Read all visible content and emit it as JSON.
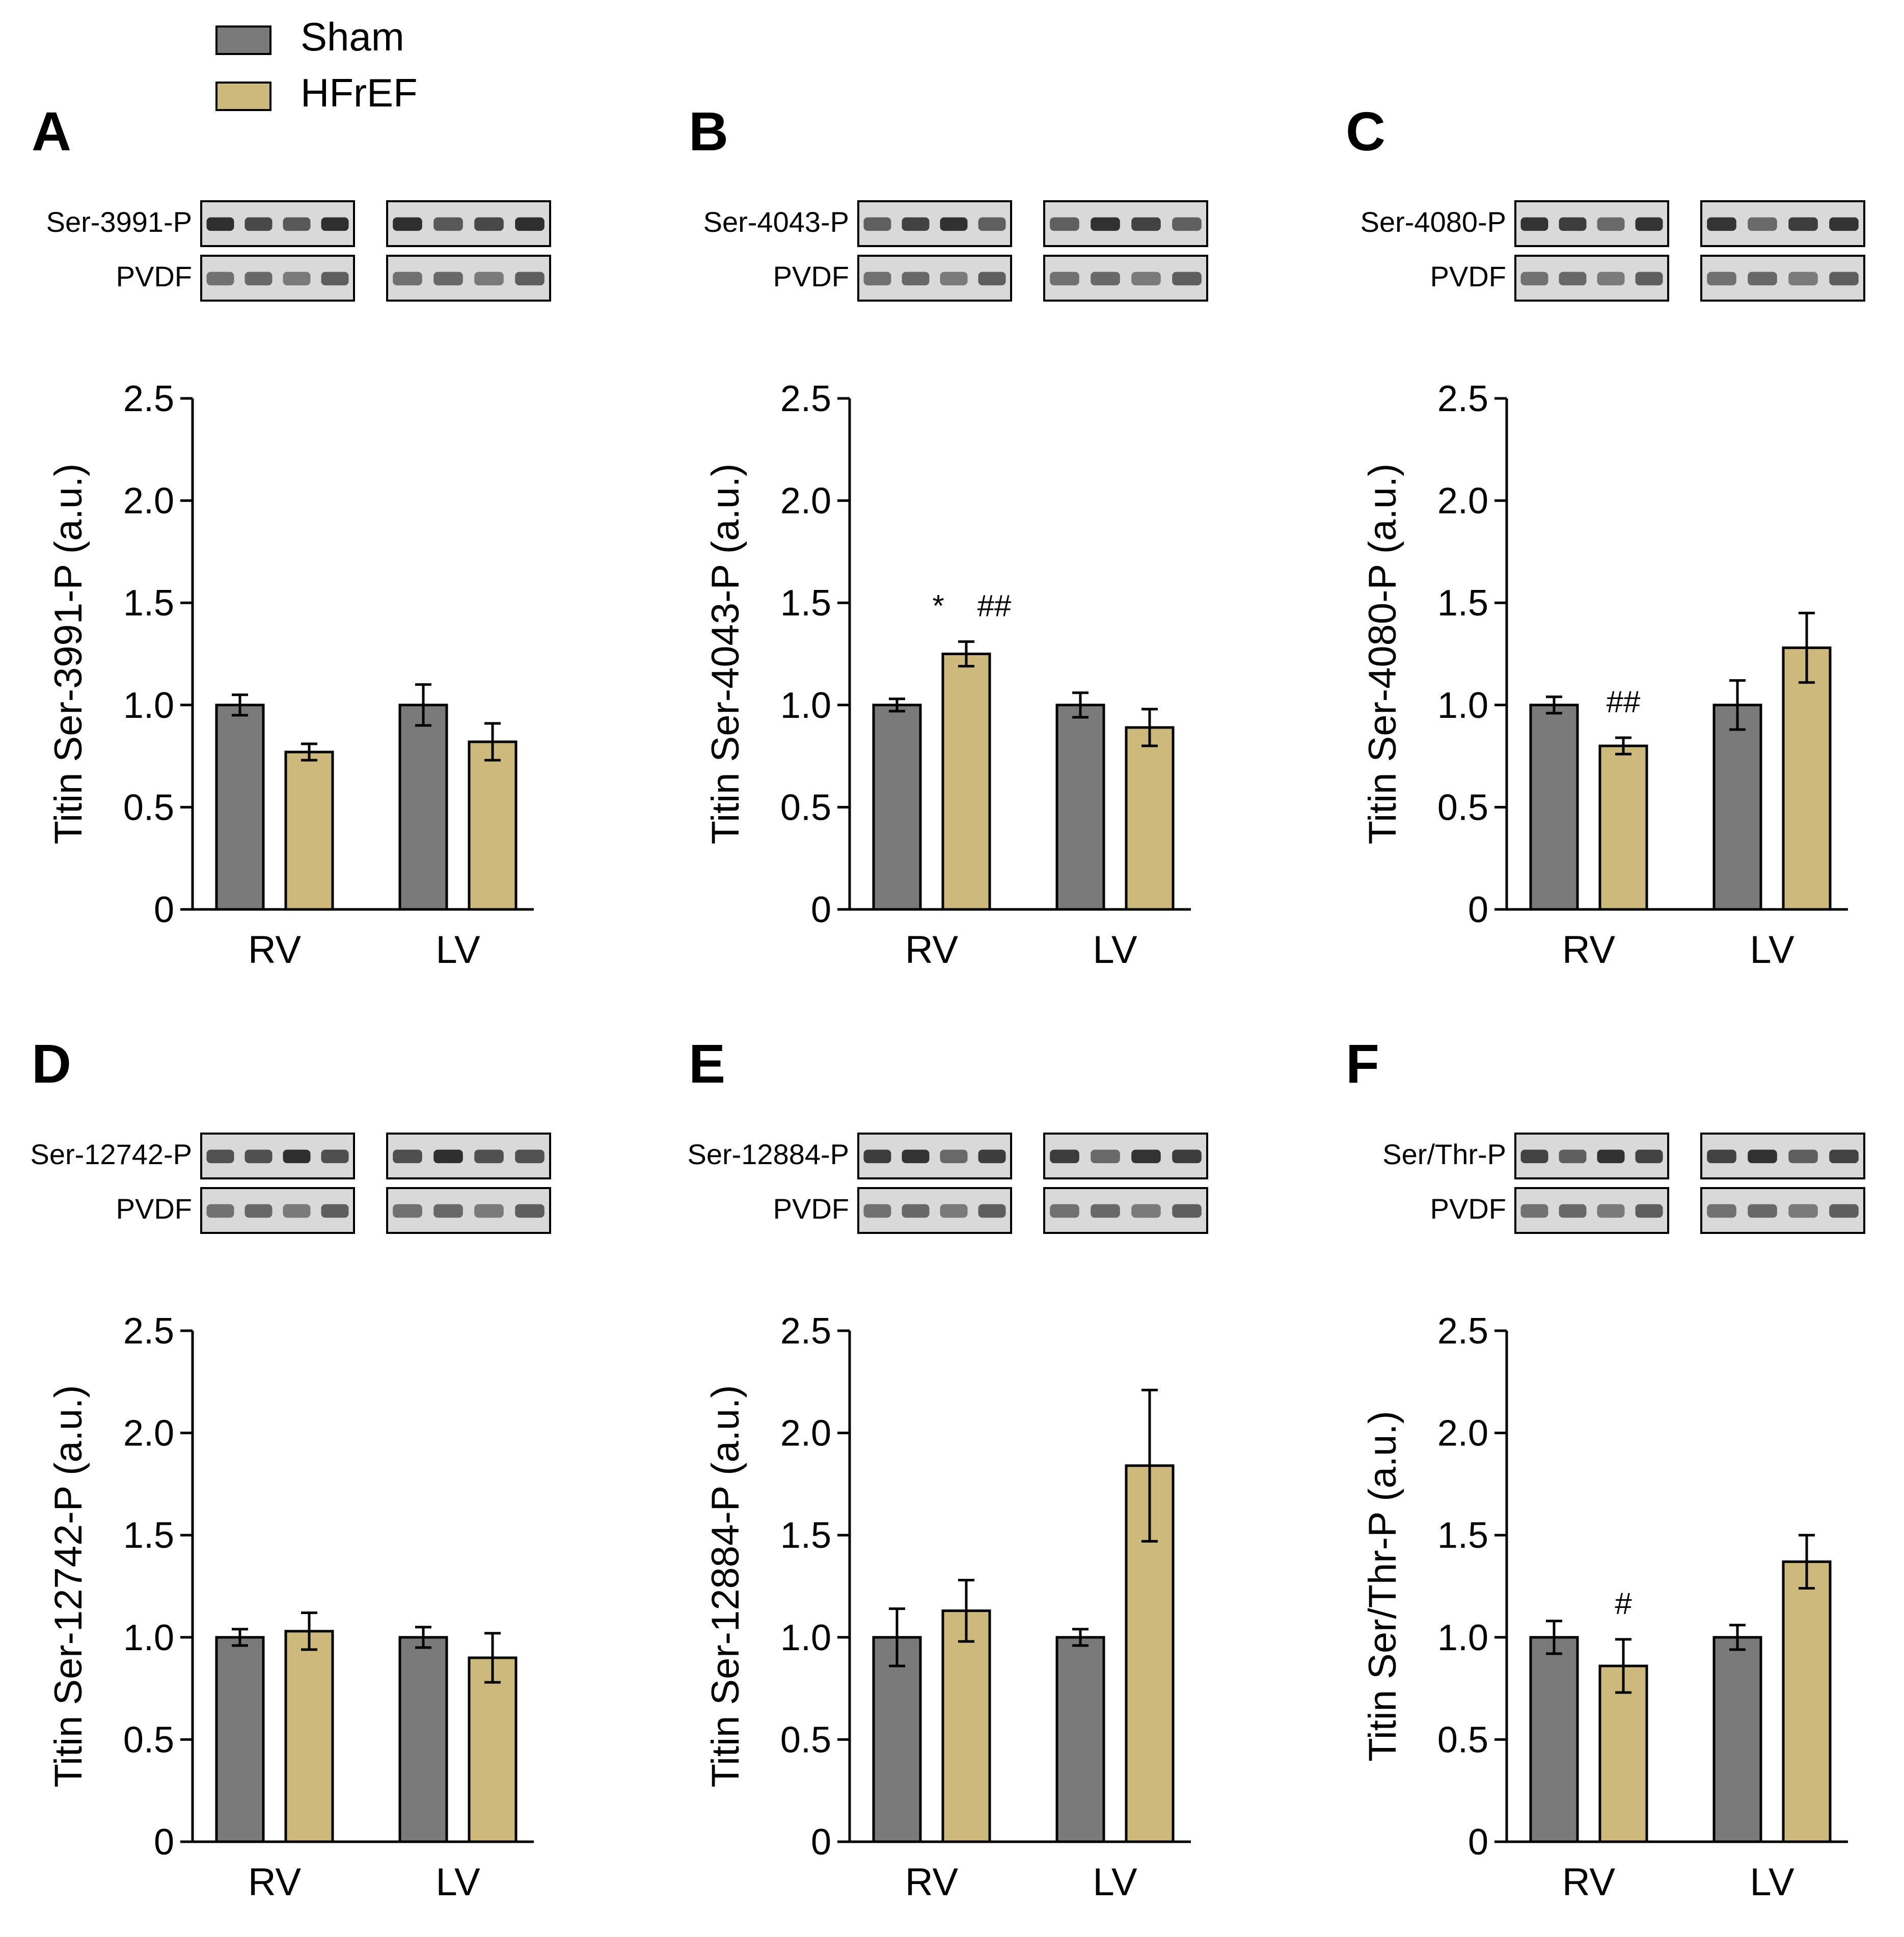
{
  "colors": {
    "sham": "#7a7a7a",
    "hfref": "#cdb97b",
    "axis": "#000000",
    "blot_frame": "#000000"
  },
  "legend": {
    "items": [
      {
        "label": "Sham",
        "color": "#7a7a7a"
      },
      {
        "label": "HFrEF",
        "color": "#cdb97b"
      }
    ]
  },
  "chart_data": [
    {
      "panel": "A",
      "type": "bar",
      "blot_labels": [
        "Ser-3991-P",
        "PVDF"
      ],
      "ylabel": "Titin Ser-3991-P (a.u.)",
      "ylim": [
        0,
        2.5
      ],
      "yticks": [
        "0",
        "0.5",
        "1.0",
        "1.5",
        "2.0",
        "2.5"
      ],
      "categories": [
        "RV",
        "LV"
      ],
      "series": [
        {
          "name": "Sham",
          "values": [
            1.0,
            1.0
          ],
          "errors": [
            0.05,
            0.1
          ]
        },
        {
          "name": "HFrEF",
          "values": [
            0.77,
            0.82
          ],
          "errors": [
            0.04,
            0.09
          ]
        }
      ],
      "annotations": []
    },
    {
      "panel": "B",
      "type": "bar",
      "blot_labels": [
        "Ser-4043-P",
        "PVDF"
      ],
      "ylabel": "Titin Ser-4043-P (a.u.)",
      "ylim": [
        0,
        2.5
      ],
      "yticks": [
        "0",
        "0.5",
        "1.0",
        "1.5",
        "2.0",
        "2.5"
      ],
      "categories": [
        "RV",
        "LV"
      ],
      "series": [
        {
          "name": "Sham",
          "values": [
            1.0,
            1.0
          ],
          "errors": [
            0.03,
            0.06
          ]
        },
        {
          "name": "HFrEF",
          "values": [
            1.25,
            0.89
          ],
          "errors": [
            0.06,
            0.09
          ]
        }
      ],
      "annotations": [
        {
          "text": "*",
          "category": 0,
          "series": 1,
          "offset": -0.55
        },
        {
          "text": "##",
          "category": 0,
          "series": 1,
          "offset": 0.55
        }
      ]
    },
    {
      "panel": "C",
      "type": "bar",
      "blot_labels": [
        "Ser-4080-P",
        "PVDF"
      ],
      "ylabel": "Titin Ser-4080-P (a.u.)",
      "ylim": [
        0,
        2.5
      ],
      "yticks": [
        "0",
        "0.5",
        "1.0",
        "1.5",
        "2.0",
        "2.5"
      ],
      "categories": [
        "RV",
        "LV"
      ],
      "series": [
        {
          "name": "Sham",
          "values": [
            1.0,
            1.0
          ],
          "errors": [
            0.04,
            0.12
          ]
        },
        {
          "name": "HFrEF",
          "values": [
            0.8,
            1.28
          ],
          "errors": [
            0.04,
            0.17
          ]
        }
      ],
      "annotations": [
        {
          "text": "##",
          "category": 0,
          "series": 1,
          "offset": 0
        }
      ]
    },
    {
      "panel": "D",
      "type": "bar",
      "blot_labels": [
        "Ser-12742-P",
        "PVDF"
      ],
      "ylabel": "Titin Ser-12742-P (a.u.)",
      "ylim": [
        0,
        2.5
      ],
      "yticks": [
        "0",
        "0.5",
        "1.0",
        "1.5",
        "2.0",
        "2.5"
      ],
      "categories": [
        "RV",
        "LV"
      ],
      "series": [
        {
          "name": "Sham",
          "values": [
            1.0,
            1.0
          ],
          "errors": [
            0.04,
            0.05
          ]
        },
        {
          "name": "HFrEF",
          "values": [
            1.03,
            0.9
          ],
          "errors": [
            0.09,
            0.12
          ]
        }
      ],
      "annotations": []
    },
    {
      "panel": "E",
      "type": "bar",
      "blot_labels": [
        "Ser-12884-P",
        "PVDF"
      ],
      "ylabel": "Titin Ser-12884-P (a.u.)",
      "ylim": [
        0,
        2.5
      ],
      "yticks": [
        "0",
        "0.5",
        "1.0",
        "1.5",
        "2.0",
        "2.5"
      ],
      "categories": [
        "RV",
        "LV"
      ],
      "series": [
        {
          "name": "Sham",
          "values": [
            1.0,
            1.0
          ],
          "errors": [
            0.14,
            0.04
          ]
        },
        {
          "name": "HFrEF",
          "values": [
            1.13,
            1.84
          ],
          "errors": [
            0.15,
            0.37
          ]
        }
      ],
      "annotations": []
    },
    {
      "panel": "F",
      "type": "bar",
      "blot_labels": [
        "Ser/Thr-P",
        "PVDF"
      ],
      "ylabel": "Titin Ser/Thr-P (a.u.)",
      "ylim": [
        0,
        2.5
      ],
      "yticks": [
        "0",
        "0.5",
        "1.0",
        "1.5",
        "2.0",
        "2.5"
      ],
      "categories": [
        "RV",
        "LV"
      ],
      "series": [
        {
          "name": "Sham",
          "values": [
            1.0,
            1.0
          ],
          "errors": [
            0.08,
            0.06
          ]
        },
        {
          "name": "HFrEF",
          "values": [
            0.86,
            1.37
          ],
          "errors": [
            0.13,
            0.13
          ]
        }
      ],
      "annotations": [
        {
          "text": "#",
          "category": 0,
          "series": 1,
          "offset": 0
        }
      ]
    }
  ]
}
